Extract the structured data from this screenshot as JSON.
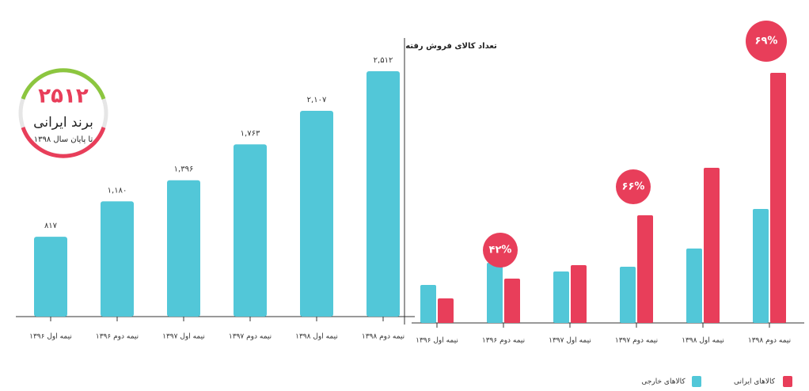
{
  "chart_data": [
    {
      "type": "bar",
      "categories": [
        "نیمه اول ۱۳۹۶",
        "نیمه دوم ۱۳۹۶",
        "نیمه اول ۱۳۹۷",
        "نیمه دوم ۱۳۹۷",
        "نیمه اول ۱۳۹۸",
        "نیمه دوم ۱۳۹۸"
      ],
      "values": [
        817,
        1180,
        1396,
        1763,
        2107,
        2512
      ],
      "value_labels": [
        "۸۱۷",
        "۱,۱۸۰",
        "۱,۳۹۶",
        "۱,۷۶۳",
        "۲,۱۰۷",
        "۲,۵۱۲"
      ],
      "color": "#52c7d8",
      "badge": {
        "value": 2512,
        "label": "۲۵۱۲",
        "title": "برند ایرانی",
        "subtitle": "تا پایان سال ۱۳۹۸"
      }
    },
    {
      "type": "grouped-bar",
      "title": "تعداد کالای فروش رفته",
      "categories": [
        "نیمه اول ۱۳۹۶",
        "نیمه دوم ۱۳۹۶",
        "نیمه اول ۱۳۹۷",
        "نیمه دوم ۱۳۹۷",
        "نیمه اول ۱۳۹۸",
        "نیمه دوم ۱۳۹۸"
      ],
      "series": [
        {
          "name": "کالاهای خارجی",
          "color": "#52c7d8",
          "values": [
            48,
            76,
            65,
            71,
            94,
            144
          ]
        },
        {
          "name": "کالاهای ایرانی",
          "color": "#e83e5a",
          "values": [
            31,
            56,
            73,
            136,
            196,
            316
          ]
        }
      ],
      "annotations": [
        {
          "category": "نیمه دوم ۱۳۹۶",
          "value": 42,
          "label": "۴۲%"
        },
        {
          "category": "نیمه دوم ۱۳۹۷",
          "value": 66,
          "label": "۶۶%"
        },
        {
          "category": "نیمه دوم ۱۳۹۸",
          "value": 69,
          "label": "۶۹%"
        }
      ]
    }
  ]
}
